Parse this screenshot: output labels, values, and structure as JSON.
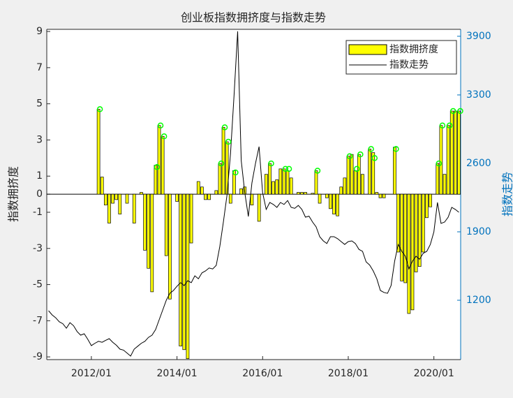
{
  "chart_data": {
    "type": "bar_line",
    "title": "创业板指数拥挤度与指数走势",
    "ylabel": "指数拥挤度",
    "y2label": "指数走势",
    "x": [
      "2011/01",
      "2011/02",
      "2011/03",
      "2011/04",
      "2011/05",
      "2011/06",
      "2011/07",
      "2011/08",
      "2011/09",
      "2011/10",
      "2011/11",
      "2011/12",
      "2012/01",
      "2012/02",
      "2012/03",
      "2012/04",
      "2012/05",
      "2012/06",
      "2012/07",
      "2012/08",
      "2012/09",
      "2012/10",
      "2012/11",
      "2012/12",
      "2013/01",
      "2013/02",
      "2013/03",
      "2013/04",
      "2013/05",
      "2013/06",
      "2013/07",
      "2013/08",
      "2013/09",
      "2013/10",
      "2013/11",
      "2013/12",
      "2014/01",
      "2014/02",
      "2014/03",
      "2014/04",
      "2014/05",
      "2014/06",
      "2014/07",
      "2014/08",
      "2014/09",
      "2014/10",
      "2014/11",
      "2014/12",
      "2015/01",
      "2015/02",
      "2015/03",
      "2015/04",
      "2015/05",
      "2015/06",
      "2015/07",
      "2015/08",
      "2015/09",
      "2015/10",
      "2015/11",
      "2015/12",
      "2016/01",
      "2016/02",
      "2016/03",
      "2016/04",
      "2016/05",
      "2016/06",
      "2016/07",
      "2016/08",
      "2016/09",
      "2016/10",
      "2016/11",
      "2016/12",
      "2017/01",
      "2017/02",
      "2017/03",
      "2017/04",
      "2017/05",
      "2017/06",
      "2017/07",
      "2017/08",
      "2017/09",
      "2017/10",
      "2017/11",
      "2017/12",
      "2018/01",
      "2018/02",
      "2018/03",
      "2018/04",
      "2018/05",
      "2018/06",
      "2018/07",
      "2018/08",
      "2018/09",
      "2018/10",
      "2018/11",
      "2018/12",
      "2019/01",
      "2019/02",
      "2019/03",
      "2019/04",
      "2019/05",
      "2019/06",
      "2019/07",
      "2019/08",
      "2019/09",
      "2019/10",
      "2019/11",
      "2019/12",
      "2020/01",
      "2020/02",
      "2020/03",
      "2020/04",
      "2020/05",
      "2020/06",
      "2020/07",
      "2020/08"
    ],
    "xticks": [
      "2012/01",
      "2014/01",
      "2016/01",
      "2018/01",
      "2020/01"
    ],
    "ylim": [
      -9.15,
      9.12
    ],
    "yticks": [
      -9,
      -7,
      -5,
      -3,
      -1,
      0,
      1,
      3,
      5,
      7,
      9
    ],
    "y2lim": [
      593,
      3971
    ],
    "y2ticks": [
      1200,
      1900,
      2600,
      3300,
      3900
    ],
    "legend": "upper right",
    "series": [
      {
        "name": "指数拥挤度",
        "kind": "bar",
        "color": "#ffff00",
        "values": [
          null,
          null,
          null,
          null,
          null,
          null,
          null,
          null,
          null,
          null,
          null,
          null,
          null,
          null,
          4.7,
          0.95,
          -0.6,
          -1.6,
          -0.5,
          -0.3,
          -1.1,
          null,
          -0.5,
          null,
          -1.6,
          null,
          0.1,
          -3.1,
          -4.1,
          -5.4,
          1.6,
          3.8,
          3.2,
          -3.4,
          -5.8,
          null,
          -0.4,
          -8.4,
          -8.6,
          -9.1,
          -2.7,
          null,
          0.7,
          0.4,
          -0.3,
          -0.3,
          null,
          0.2,
          1.7,
          3.7,
          2.9,
          -0.5,
          1.3,
          null,
          0.3,
          0.4,
          null,
          -0.6,
          null,
          -1.5,
          null,
          1.1,
          1.7,
          0.7,
          0.8,
          1.4,
          1.4,
          1.3,
          0.9,
          null,
          0.1,
          0.1,
          0.1,
          null,
          0.05,
          1.3,
          -0.5,
          null,
          -0.2,
          -0.8,
          -1.1,
          -1.2,
          0.4,
          0.9,
          2.1,
          2.2,
          1.3,
          2.2,
          1.1,
          null,
          2.5,
          2.3,
          0.1,
          -0.2,
          -0.2,
          null,
          null,
          2.6,
          -3.2,
          -4.8,
          -4.9,
          -6.6,
          -6.4,
          -4.3,
          -4.0,
          -3.2,
          -1.3,
          -0.7,
          null,
          1.7,
          3.8,
          1.1,
          3.8,
          4.6,
          4.6,
          4.6
        ]
      },
      {
        "name": "指数走势",
        "kind": "line",
        "axis": "y2",
        "color": "#000000",
        "values": [
          1093,
          1050,
          1021,
          980,
          960,
          914,
          971,
          940,
          880,
          843,
          857,
          800,
          736,
          760,
          780,
          770,
          790,
          807,
          770,
          740,
          700,
          690,
          660,
          629,
          700,
          730,
          760,
          780,
          820,
          843,
          900,
          1000,
          1100,
          1200,
          1271,
          1300,
          1343,
          1380,
          1350,
          1400,
          1380,
          1450,
          1420,
          1480,
          1500,
          1530,
          1520,
          1557,
          1750,
          2000,
          2271,
          2700,
          3300,
          3950,
          2629,
          2300,
          2057,
          2400,
          2600,
          2771,
          2300,
          2129,
          2200,
          2180,
          2150,
          2200,
          2180,
          2220,
          2150,
          2140,
          2170,
          2129,
          2050,
          2060,
          2000,
          1950,
          1850,
          1807,
          1780,
          1850,
          1850,
          1830,
          1800,
          1771,
          1800,
          1807,
          1780,
          1720,
          1700,
          1593,
          1560,
          1500,
          1420,
          1300,
          1280,
          1271,
          1350,
          1600,
          1771,
          1700,
          1650,
          1521,
          1600,
          1650,
          1620,
          1680,
          1700,
          1771,
          1900,
          2200,
          1986,
          2000,
          2050,
          2150,
          2129,
          2100
        ]
      },
      {
        "kind": "marker",
        "color": "#00ff00",
        "values": [
          null,
          null,
          null,
          null,
          null,
          null,
          null,
          null,
          null,
          null,
          null,
          null,
          null,
          null,
          4.7,
          null,
          null,
          null,
          null,
          null,
          null,
          null,
          null,
          null,
          null,
          null,
          null,
          null,
          null,
          null,
          1.5,
          3.8,
          3.2,
          null,
          null,
          null,
          null,
          null,
          null,
          null,
          null,
          null,
          null,
          null,
          null,
          null,
          null,
          null,
          1.7,
          3.7,
          2.9,
          null,
          1.2,
          null,
          null,
          null,
          null,
          null,
          null,
          null,
          null,
          null,
          1.7,
          null,
          null,
          null,
          1.4,
          1.4,
          null,
          null,
          null,
          null,
          null,
          null,
          null,
          1.3,
          null,
          null,
          null,
          null,
          null,
          null,
          null,
          null,
          2.1,
          null,
          1.4,
          2.2,
          null,
          null,
          2.5,
          2.0,
          null,
          null,
          null,
          null,
          null,
          2.5,
          null,
          null,
          null,
          null,
          null,
          null,
          null,
          null,
          null,
          null,
          null,
          1.7,
          3.8,
          null,
          3.8,
          4.6,
          null,
          4.6
        ]
      }
    ]
  }
}
